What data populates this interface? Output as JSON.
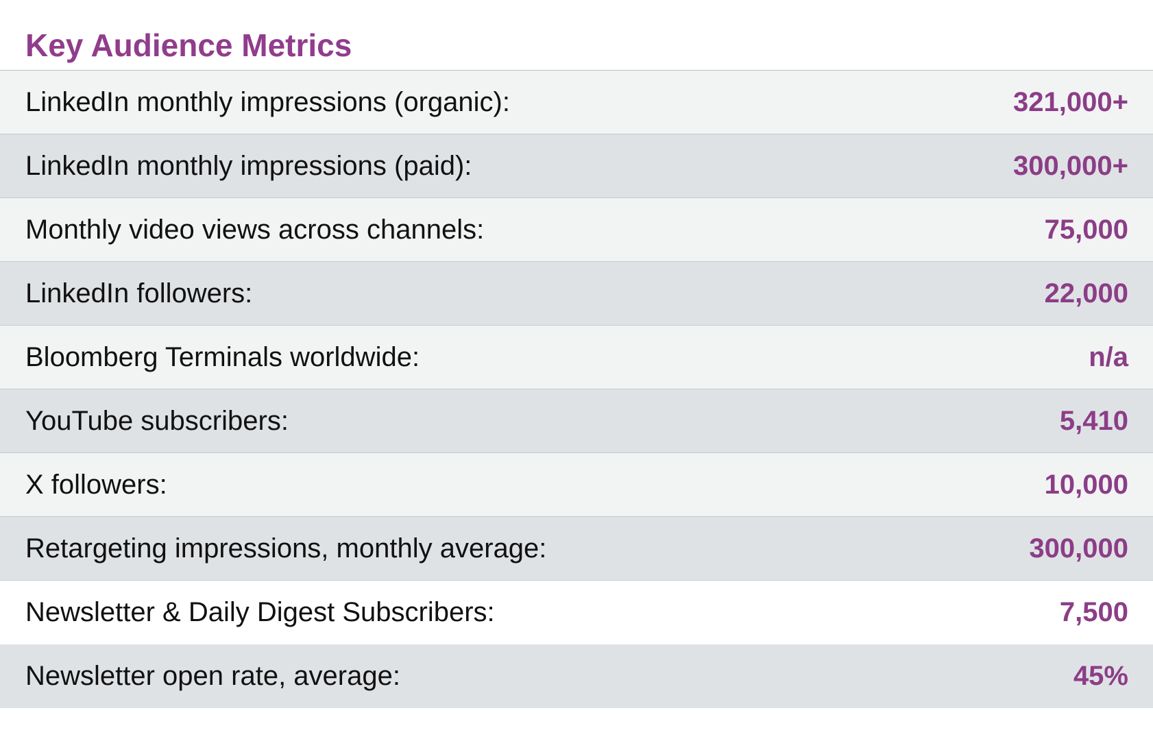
{
  "title": "Key Audience Metrics",
  "colors": {
    "accent": "#913c8c",
    "row_light": "#f2f4f4",
    "row_dark": "#dfe2e5",
    "label_text": "#111111"
  },
  "rows": [
    {
      "label": "LinkedIn monthly impressions (organic):",
      "value": "321,000+"
    },
    {
      "label": "LinkedIn monthly impressions (paid):",
      "value": "300,000+"
    },
    {
      "label": "Monthly video views across channels:",
      "value": "75,000"
    },
    {
      "label": "LinkedIn followers:",
      "value": "22,000"
    },
    {
      "label": "Bloomberg Terminals worldwide:",
      "value": "n/a"
    },
    {
      "label": "YouTube subscribers:",
      "value": "5,410"
    },
    {
      "label": "X followers:",
      "value": "10,000"
    },
    {
      "label": "Retargeting impressions, monthly average:",
      "value": "300,000"
    },
    {
      "label": "Newsletter & Daily Digest Subscribers:",
      "value": "7,500"
    },
    {
      "label": "Newsletter open rate, average:",
      "value": "45%"
    }
  ]
}
